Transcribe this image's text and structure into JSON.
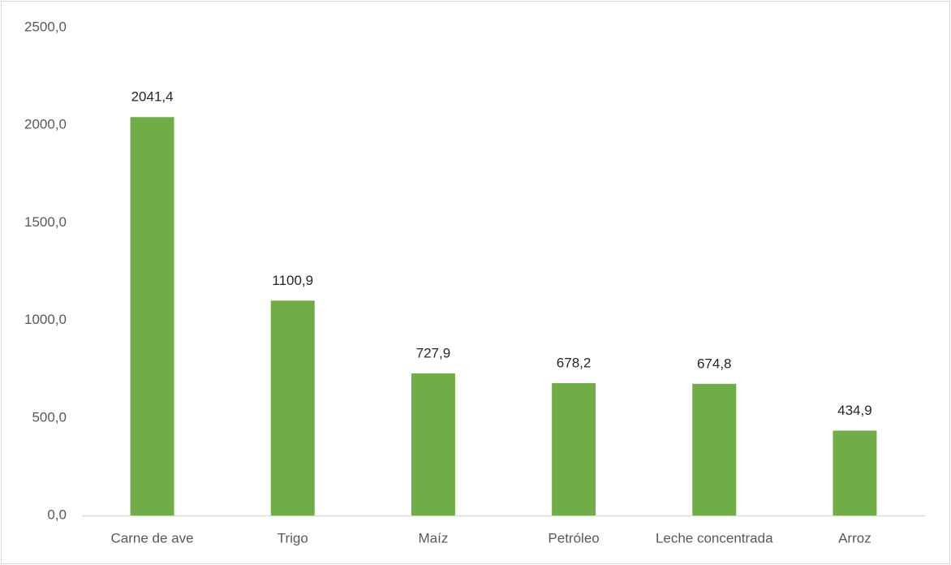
{
  "chart_data": {
    "type": "bar",
    "categories": [
      "Carne de ave",
      "Trigo",
      "Maíz",
      "Petróleo",
      "Leche concentrada",
      "Arroz"
    ],
    "values": [
      2041.4,
      1100.9,
      727.9,
      678.2,
      674.8,
      434.9
    ],
    "value_labels": [
      "2041,4",
      "1100,9",
      "727,9",
      "678,2",
      "674,8",
      "434,9"
    ],
    "color": "#70ad47",
    "ylim": [
      0,
      2500
    ],
    "yticks": [
      {
        "value": 0,
        "label": "0,0"
      },
      {
        "value": 500,
        "label": "500,0"
      },
      {
        "value": 1000,
        "label": "1000,0"
      },
      {
        "value": 1500,
        "label": "1500,0"
      },
      {
        "value": 2000,
        "label": "2000,0"
      },
      {
        "value": 2500,
        "label": "2500,0"
      }
    ],
    "grid": false
  }
}
